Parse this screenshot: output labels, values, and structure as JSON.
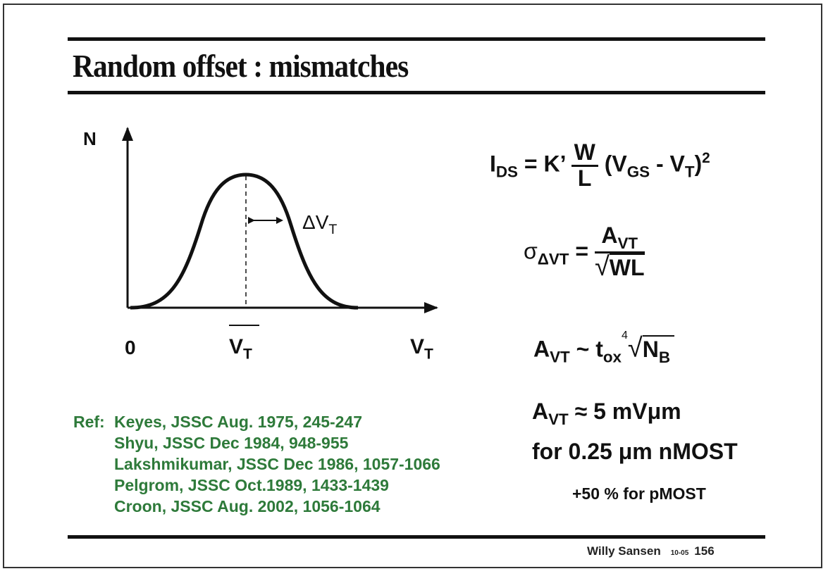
{
  "title": "Random offset : mismatches",
  "graph": {
    "y_axis_label": "N",
    "origin_label": "0",
    "mean_label": {
      "main": "V",
      "sub": "T"
    },
    "x_axis_label": {
      "main": "V",
      "sub": "T"
    },
    "spread_label": {
      "main": "ΔV",
      "sub": "T"
    }
  },
  "equations": {
    "ids": {
      "lhs": "I",
      "lhs_sub": "DS",
      "eq": " = K’ ",
      "num": "W",
      "den": "L",
      "rest1": " (V",
      "rest1_sub": "GS",
      "rest2": " - V",
      "rest2_sub": "T",
      "rest3": ")",
      "sup": "2"
    },
    "sigma": {
      "lhs": "σ",
      "lhs_sub": "ΔVT",
      "eq": " = ",
      "num": "A",
      "num_sub": "VT",
      "den": "WL"
    },
    "avt": {
      "lhs": "A",
      "lhs_sub": "VT",
      "op": " ~ t",
      "op_sub": "ox",
      "root_index": "4",
      "rad": "N",
      "rad_sub": "B"
    },
    "value": {
      "lhs": "A",
      "lhs_sub": "VT",
      "rhs": " ≈ 5 mVμm"
    },
    "note1": "for 0.25 μm nMOST",
    "note2": "+50 % for pMOST"
  },
  "references": {
    "label": "Ref:",
    "items": [
      "Keyes, JSSC Aug. 1975, 245-247",
      "Shyu, JSSC Dec 1984, 948-955",
      "Lakshmikumar, JSSC Dec 1986, 1057-1066",
      "Pelgrom, JSSC Oct.1989, 1433-1439",
      "Croon, JSSC Aug. 2002, 1056-1064"
    ]
  },
  "footer": {
    "author": "Willy Sansen",
    "date": "10-05",
    "page": "156"
  },
  "colors": {
    "reference_text": "#2e7a3a",
    "ink": "#111111"
  }
}
